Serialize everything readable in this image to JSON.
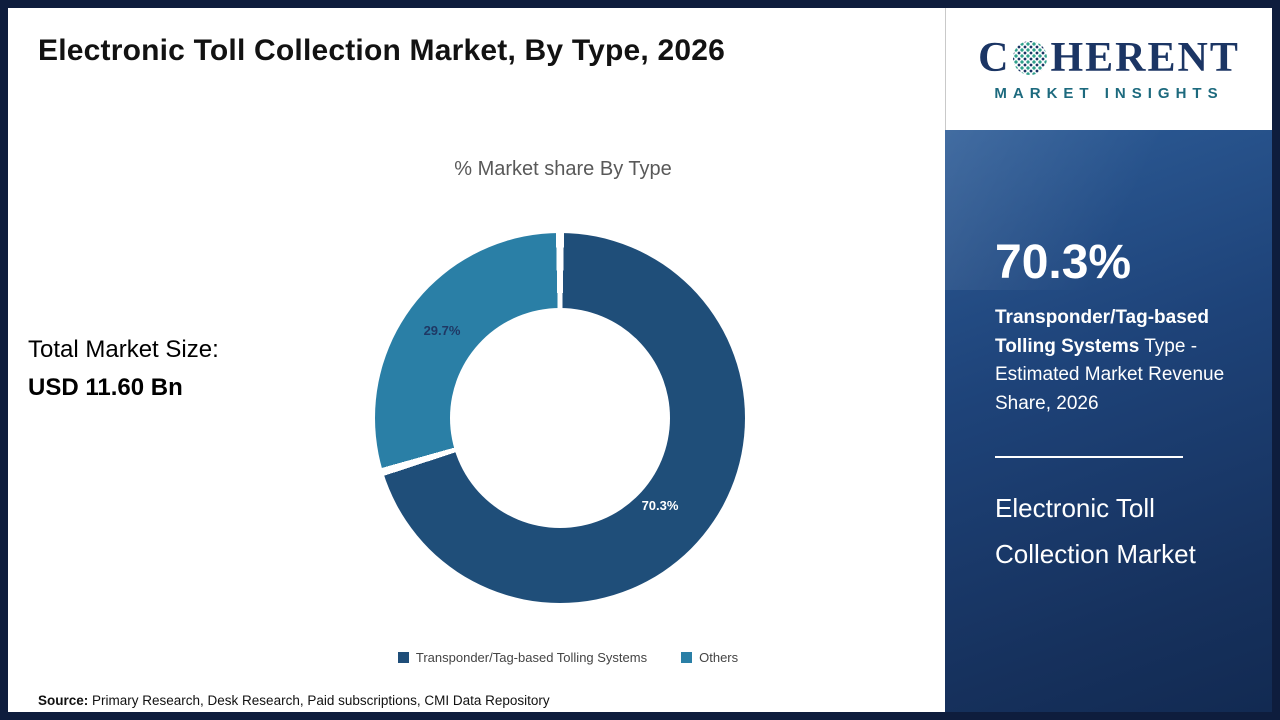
{
  "header": {
    "title": "Electronic Toll Collection Market, By Type, 2026"
  },
  "logo": {
    "prefix": "C",
    "suffix": "HERENT",
    "subtitle": "MARKET INSIGHTS"
  },
  "stats": {
    "total_label": "Total Market Size:",
    "total_value": "USD 11.60 Bn"
  },
  "chart_data": {
    "type": "pie",
    "donut": true,
    "title": "% Market share By Type",
    "labels": [
      "Transponder/Tag-based Tolling Systems",
      "Others"
    ],
    "values": [
      70.3,
      29.7
    ],
    "colors": [
      "#1f4e79",
      "#2a7fa6"
    ],
    "data_labels": [
      "70.3%",
      "29.7%"
    ],
    "legend_position": "bottom"
  },
  "source": {
    "prefix": "Source:",
    "text": " Primary Research, Desk Research, Paid subscriptions, CMI Data Repository"
  },
  "panel": {
    "stat": "70.3%",
    "desc_bold": "Transponder/Tag-based Tolling Systems",
    "desc_rest": " Type - Estimated Market Revenue Share, 2026",
    "market_title": "Electronic Toll Collection Market"
  }
}
